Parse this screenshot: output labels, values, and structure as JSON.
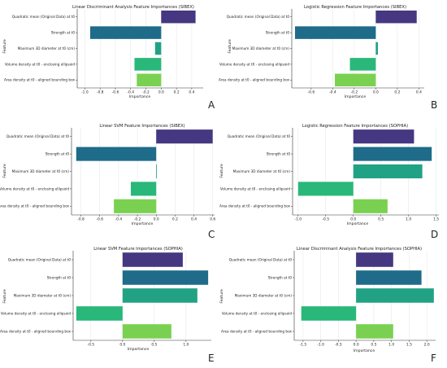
{
  "colors": {
    "features": [
      "#453781",
      "#1f6b8a",
      "#22a284",
      "#29b87a",
      "#7ad151"
    ],
    "grid": "#e8e8e8",
    "axis": "#333333",
    "text": "#222222"
  },
  "chart_data": [
    {
      "type": "bar",
      "panel_letter": "A",
      "orientation": "horizontal",
      "title": "Linear Discriminant Analysis Feature Importances (SIBEX)",
      "xlabel": "Importance",
      "ylabel": "Feature",
      "categories": [
        "Quadratic mean (Original Data) at t0",
        "Strength at t0",
        "Maximum 3D diameter at t0 (cm)",
        "Volume density at t0 - enclosing ellipsoid",
        "Area density at t0 - aligned bounding box"
      ],
      "values": [
        0.45,
        -0.93,
        -0.08,
        -0.35,
        -0.32
      ],
      "xlim": [
        -1.1,
        0.55
      ],
      "xticks": [
        -1.0,
        -0.8,
        -0.6,
        -0.4,
        -0.2,
        0.0,
        0.2,
        0.4
      ],
      "xtick_labels": [
        "-1.0",
        "-0.8",
        "-0.6",
        "-0.4",
        "-0.2",
        "0.0",
        "0.2",
        "0.4"
      ],
      "grid": true
    },
    {
      "type": "bar",
      "panel_letter": "B",
      "orientation": "horizontal",
      "title": "Logistic Regression Feature Importances (SIBEX)",
      "xlabel": "Importance",
      "ylabel": "Feature",
      "categories": [
        "Quadratic mean (Original Data) at t0",
        "Strength at t0",
        "Maximum 3D diameter at t0 (cm)",
        "Volume density at t0 - enclosing ellipsoid",
        "Area density at t0 - aligned bounding box"
      ],
      "values": [
        0.38,
        -0.75,
        0.02,
        -0.24,
        -0.38
      ],
      "xlim": [
        -0.78,
        0.45
      ],
      "xticks": [
        -0.6,
        -0.4,
        -0.2,
        0.0,
        0.2,
        0.4
      ],
      "xtick_labels": [
        "-0.6",
        "-0.4",
        "-0.2",
        "0.0",
        "0.2",
        "0.4"
      ],
      "grid": true
    },
    {
      "type": "bar",
      "panel_letter": "C",
      "orientation": "horizontal",
      "title": "Linear SVM Feature Importances (SIBEX)",
      "xlabel": "Importance",
      "ylabel": "Feature",
      "categories": [
        "Quadratic mean (Original Data) at t0",
        "Strength at t0",
        "Maximum 3D diameter at t0 (cm)",
        "Volume density at t0 - enclosing ellipsoid",
        "Area density at t0 - aligned bounding box"
      ],
      "values": [
        0.6,
        -0.85,
        0.0,
        -0.27,
        -0.45
      ],
      "xlim": [
        -0.9,
        0.62
      ],
      "xticks": [
        -0.8,
        -0.6,
        -0.4,
        -0.2,
        0.0,
        0.2,
        0.4,
        0.6
      ],
      "xtick_labels": [
        "-0.8",
        "-0.6",
        "-0.4",
        "-0.2",
        "0.0",
        "0.2",
        "0.4",
        "0.6"
      ],
      "grid": true
    },
    {
      "type": "bar",
      "panel_letter": "D",
      "orientation": "horizontal",
      "title": "Logistic Regression Feature Importances (SOPHIA)",
      "xlabel": "Importance",
      "ylabel": "Feature",
      "categories": [
        "Quadratic mean (Original Data) at t0",
        "Strength at t0",
        "Maximum 3D diameter at t0 (cm)",
        "Volume density at t0 - enclosing ellipsoid",
        "Area density at t0 - aligned bounding box"
      ],
      "values": [
        1.1,
        1.42,
        1.25,
        -1.0,
        0.62
      ],
      "xlim": [
        -1.1,
        1.55
      ],
      "xticks": [
        -1.0,
        -0.5,
        0.0,
        0.5,
        1.0,
        1.5
      ],
      "xtick_labels": [
        "-1.0",
        "-0.5",
        "0.0",
        "0.5",
        "1.0",
        "1.5"
      ],
      "grid": true
    },
    {
      "type": "bar",
      "panel_letter": "E",
      "orientation": "horizontal",
      "title": "Linear SVM Feature Importances (SOPHIA)",
      "xlabel": "Importance",
      "ylabel": "Feature",
      "categories": [
        "Quadratic mean (Original Data) at t0",
        "Strength at t0",
        "Maximum 3D diameter at t0 (cm)",
        "Volume density at t0 - enclosing ellipsoid",
        "Area density at t0 - aligned bounding box"
      ],
      "values": [
        0.95,
        1.35,
        1.18,
        -0.73,
        0.77
      ],
      "xlim": [
        -0.78,
        1.4
      ],
      "xticks": [
        -0.5,
        0.0,
        0.5,
        1.0
      ],
      "xtick_labels": [
        "-0.5",
        "0.0",
        "0.5",
        "1.0"
      ],
      "grid": true
    },
    {
      "type": "bar",
      "panel_letter": "F",
      "orientation": "horizontal",
      "title": "Linear Discriminant Analysis Feature Importances (SOPHIA)",
      "xlabel": "Importance",
      "ylabel": "Feature",
      "categories": [
        "Quadratic mean (Original Data) at t0",
        "Strength at t0",
        "Maximum 3D diameter at t0 (cm)",
        "Volume density at t0 - enclosing ellipsoid",
        "Area density at t0 - aligned bounding box"
      ],
      "values": [
        1.05,
        1.85,
        2.2,
        -1.55,
        1.05
      ],
      "xlim": [
        -1.75,
        2.25
      ],
      "xticks": [
        -1.5,
        -1.0,
        -0.5,
        0.0,
        0.5,
        1.0,
        1.5,
        2.0
      ],
      "xtick_labels": [
        "-1.5",
        "-1.0",
        "-0.5",
        "0.0",
        "0.5",
        "1.0",
        "1.5",
        "2.0"
      ],
      "grid": true
    }
  ]
}
